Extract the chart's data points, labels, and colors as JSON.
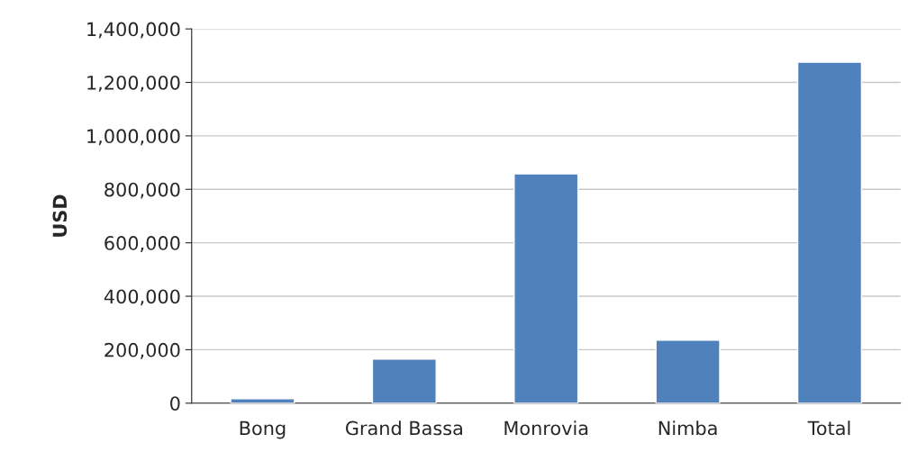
{
  "chart_data": {
    "type": "bar",
    "ylabel": "USD",
    "categories": [
      "Bong",
      "Grand Bassa",
      "Monrovia",
      "Nimba",
      "Total"
    ],
    "values": [
      17000,
      165000,
      858000,
      236000,
      1276000
    ],
    "color": "#4f81bd",
    "ylim": [
      0,
      1400000
    ],
    "yticks": [
      {
        "value": 0,
        "label": "0"
      },
      {
        "value": 200000,
        "label": "200,000"
      },
      {
        "value": 400000,
        "label": "400,000"
      },
      {
        "value": 600000,
        "label": "600,000"
      },
      {
        "value": 800000,
        "label": "800,000"
      },
      {
        "value": 1000000,
        "label": "1,000,000"
      },
      {
        "value": 1200000,
        "label": "1,200,000"
      },
      {
        "value": 1400000,
        "label": "1,400,000"
      }
    ],
    "grid": "y",
    "legend": false
  }
}
